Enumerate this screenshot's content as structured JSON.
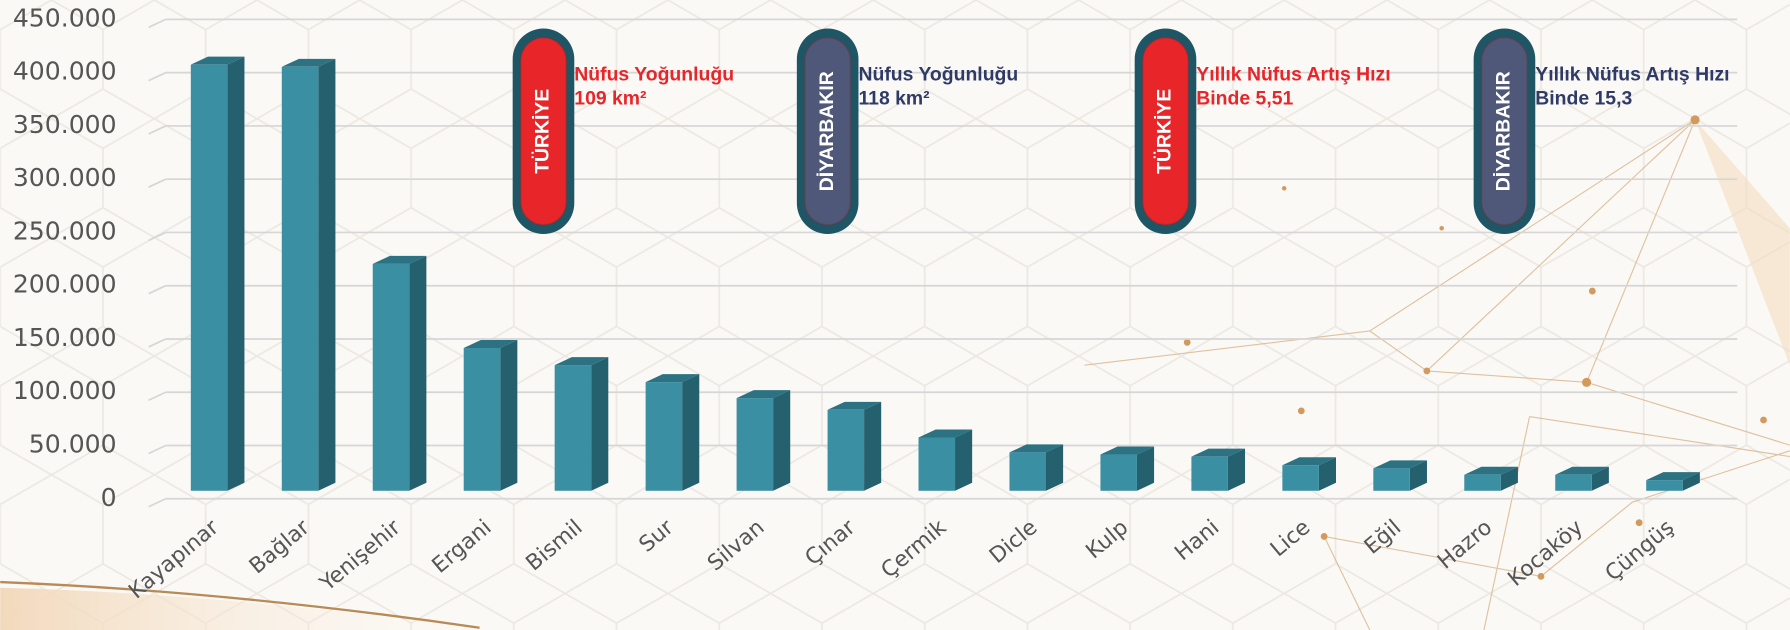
{
  "chart_data": {
    "type": "bar",
    "categories": [
      "Kayapınar",
      "Bağlar",
      "Yenişehir",
      "Ergani",
      "Bismil",
      "Sur",
      "Silvan",
      "Çınar",
      "Çermik",
      "Dicle",
      "Kulp",
      "Hani",
      "Lice",
      "Eğil",
      "Hazro",
      "Kocaköy",
      "Çüngüş"
    ],
    "values": [
      400000,
      398000,
      213000,
      134000,
      118000,
      102000,
      87000,
      76000,
      50000,
      36000,
      34000,
      32000,
      24000,
      21000,
      15000,
      15000,
      10000
    ],
    "color": "#3a8fa3",
    "ylim": [
      0,
      450000
    ],
    "yticks": [
      0,
      {
        "value": 50000,
        "label": "50.000"
      },
      {
        "value": 100000,
        "label": "100.000"
      },
      {
        "value": 150000,
        "label": "150.000"
      },
      {
        "value": 200000,
        "label": "200.000"
      },
      {
        "value": 250000,
        "label": "250.000"
      },
      {
        "value": 300000,
        "label": "300.000"
      },
      {
        "value": 350000,
        "label": "350.000"
      },
      {
        "value": 400000,
        "label": "400.000"
      },
      {
        "value": 450000,
        "label": "450.000"
      }
    ],
    "grid": true,
    "annotations": [
      {
        "badge": "TÜRKİYE",
        "title": "Nüfus Yoğunluğu",
        "text": "109 km²",
        "color": "#e8262a"
      },
      {
        "badge": "DİYARBAKIR",
        "title": "Nüfus Yoğunluğu",
        "text": "118 km²",
        "color": "#4f5878"
      },
      {
        "badge": "TÜRKİYE",
        "title": "Yıllık Nüfus Artış Hızı",
        "text": "Binde 5,51",
        "color": "#e8262a"
      },
      {
        "badge": "DİYARBAKIR",
        "title": "Yıllık Nüfus Artış Hızı",
        "text": "Binde 15,3",
        "color": "#4f5878"
      }
    ]
  }
}
